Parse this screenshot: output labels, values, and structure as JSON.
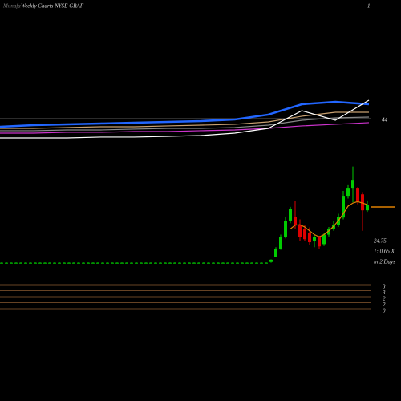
{
  "header": {
    "watermark": "Munafa",
    "title": "Weekly Charts NYSE GRAF",
    "corner": "1"
  },
  "labels": {
    "upper_price": "44",
    "last_price": "24.75",
    "ratio": "1: 0.65 X",
    "days": "in 2 Days",
    "bottom": [
      "3",
      "3",
      "2",
      "2",
      "0"
    ]
  },
  "chart_data": [
    {
      "type": "candlestick",
      "up_color": "#00cc00",
      "down_color": "#dd0000",
      "ma_color": "#e08000",
      "ylim": [
        7.5,
        37
      ],
      "candles": [
        [
          10,
          10.2,
          9.9,
          10.1
        ],
        [
          10,
          10.2,
          9.9,
          10.1
        ],
        [
          10,
          10.2,
          9.9,
          10.1
        ],
        [
          10,
          10.2,
          9.9,
          10.1
        ],
        [
          10,
          10.2,
          9.9,
          10.1
        ],
        [
          10,
          10.2,
          9.9,
          10.1
        ],
        [
          10,
          10.2,
          9.9,
          10.1
        ],
        [
          10,
          10.2,
          9.9,
          10.1
        ],
        [
          10,
          10.2,
          9.9,
          10.1
        ],
        [
          10,
          10.2,
          9.9,
          10.1
        ],
        [
          10,
          10.2,
          9.9,
          10.1
        ],
        [
          10,
          10.2,
          9.9,
          10.1
        ],
        [
          10,
          10.2,
          9.9,
          10.1
        ],
        [
          10,
          10.2,
          9.9,
          10.1
        ],
        [
          10,
          10.2,
          9.9,
          10.1
        ],
        [
          10,
          10.2,
          9.9,
          10.1
        ],
        [
          10,
          10.2,
          9.9,
          10.1
        ],
        [
          10,
          10.2,
          9.9,
          10.1
        ],
        [
          10,
          10.2,
          9.9,
          10.1
        ],
        [
          10,
          10.2,
          9.9,
          10.1
        ],
        [
          10,
          10.2,
          9.9,
          10.1
        ],
        [
          10,
          10.2,
          9.9,
          10.1
        ],
        [
          10,
          10.2,
          9.9,
          10.1
        ],
        [
          10,
          10.2,
          9.9,
          10.1
        ],
        [
          10,
          10.2,
          9.9,
          10.1
        ],
        [
          10,
          10.2,
          9.9,
          10.1
        ],
        [
          10,
          10.2,
          9.9,
          10.1
        ],
        [
          10,
          10.2,
          9.9,
          10.1
        ],
        [
          10,
          10.2,
          9.9,
          10.1
        ],
        [
          10,
          10.2,
          9.9,
          10.1
        ],
        [
          10,
          10.2,
          9.9,
          10.1
        ],
        [
          10,
          10.2,
          9.9,
          10.1
        ],
        [
          10,
          10.2,
          9.9,
          10.1
        ],
        [
          10,
          10.2,
          9.9,
          10.1
        ],
        [
          10,
          10.2,
          9.9,
          10.1
        ],
        [
          10,
          10.2,
          9.9,
          10.1
        ],
        [
          10,
          10.2,
          9.9,
          10.1
        ],
        [
          10,
          10.2,
          9.9,
          10.1
        ],
        [
          10,
          10.2,
          9.9,
          10.1
        ],
        [
          10,
          10.2,
          9.9,
          10.1
        ],
        [
          10,
          10.2,
          9.9,
          10.1
        ],
        [
          10,
          10.2,
          9.9,
          10.1
        ],
        [
          10,
          10.2,
          9.9,
          10.1
        ],
        [
          10,
          10.2,
          9.9,
          10.1
        ],
        [
          10,
          10.2,
          9.9,
          10.1
        ],
        [
          10,
          10.2,
          9.9,
          10.1
        ],
        [
          10,
          10.2,
          9.9,
          10.1
        ],
        [
          10,
          10.2,
          9.9,
          10.1
        ],
        [
          10,
          10.2,
          9.9,
          10.1
        ],
        [
          10,
          10.2,
          9.9,
          10.1
        ],
        [
          10,
          10.2,
          9.9,
          10.1
        ],
        [
          10,
          10.2,
          9.9,
          10.1
        ],
        [
          10,
          10.2,
          9.9,
          10.1
        ],
        [
          10,
          10.2,
          9.9,
          10.1
        ],
        [
          10,
          10.2,
          9.9,
          10.1
        ],
        [
          10,
          10.2,
          9.9,
          10.1
        ],
        [
          10.3,
          11,
          10.1,
          10.9
        ],
        [
          11.7,
          14.2,
          11.5,
          13.8
        ],
        [
          13.8,
          17.5,
          13.5,
          16.9
        ],
        [
          16.9,
          22.2,
          16.5,
          21.2
        ],
        [
          21.2,
          24.8,
          20.5,
          24.3
        ],
        [
          22.2,
          26.4,
          19.1,
          20.1
        ],
        [
          20.1,
          21.5,
          15.9,
          16.9
        ],
        [
          19.1,
          20.1,
          15.9,
          16.3
        ],
        [
          18,
          19.4,
          14.8,
          15.5
        ],
        [
          15.9,
          17.5,
          14.2,
          16.9
        ],
        [
          16.9,
          17.2,
          13.8,
          14.4
        ],
        [
          15,
          18,
          14.5,
          17.5
        ],
        [
          17.5,
          19.5,
          17,
          19.1
        ],
        [
          19.1,
          21,
          18.5,
          20.1
        ],
        [
          20.1,
          23,
          19.5,
          22.2
        ],
        [
          22,
          29,
          21.5,
          27.5
        ],
        [
          27.5,
          30.5,
          27,
          29.6
        ],
        [
          29.6,
          35.4,
          26,
          31.7
        ],
        [
          29.6,
          30,
          25.5,
          26.4
        ],
        [
          28.1,
          28.5,
          18.5,
          23.9
        ],
        [
          23.9,
          26.5,
          23.5,
          25.4
        ]
      ],
      "ma": [
        null,
        null,
        null,
        null,
        null,
        null,
        null,
        null,
        null,
        null,
        null,
        null,
        null,
        null,
        null,
        null,
        null,
        null,
        null,
        null,
        null,
        null,
        null,
        null,
        null,
        null,
        null,
        null,
        null,
        null,
        null,
        null,
        null,
        null,
        null,
        null,
        null,
        null,
        null,
        null,
        null,
        null,
        null,
        null,
        null,
        null,
        null,
        null,
        null,
        null,
        null,
        null,
        null,
        null,
        null,
        null,
        null,
        null,
        null,
        null,
        19,
        20,
        20.1,
        19.5,
        18.5,
        17.5,
        16.9,
        17.5,
        18.5,
        19.7,
        21.2,
        23,
        25,
        25.8,
        26.2,
        25.8,
        25.4
      ]
    },
    {
      "type": "line",
      "ylim": [
        0,
        100
      ],
      "series": [
        {
          "color": "#c8a070",
          "values": [
            25,
            25,
            26.3,
            27.5,
            27.5,
            28.8,
            30,
            31.3,
            35,
            43.8,
            50,
            50
          ]
        },
        {
          "color": "#888888",
          "values": [
            21.3,
            21.3,
            22.5,
            22.5,
            23.8,
            25,
            25,
            26.3,
            30,
            37.5,
            41.3,
            42.5
          ]
        },
        {
          "color": "#cc33cc",
          "values": [
            17.5,
            17.5,
            18.8,
            18.8,
            20,
            20,
            21.3,
            22.5,
            25,
            28.8,
            31.3,
            33.8
          ]
        },
        {
          "color": "#2266ff",
          "values": [
            27.5,
            30,
            31.3,
            32.5,
            33.8,
            35,
            36.3,
            38.8,
            46.3,
            62.5,
            66.3,
            62.5
          ]
        },
        {
          "color": "#ffffff",
          "values": [
            10,
            10,
            10,
            11.3,
            11.3,
            12.5,
            13.8,
            17.5,
            25,
            52.5,
            37.5,
            68.8
          ]
        }
      ]
    }
  ]
}
